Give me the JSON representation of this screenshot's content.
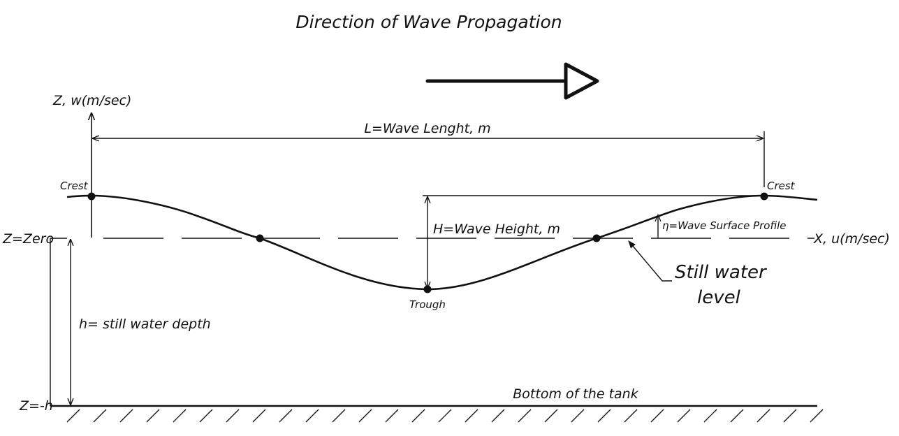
{
  "title": "Direction of Wave Propagation",
  "labels": {
    "z_axis": "Z, w(m/sec)",
    "x_axis": "X, u(m/sec)",
    "wavelength": "L=Wave Lenght, m",
    "crest_left": "Crest",
    "crest_right": "Crest",
    "trough": "Trough",
    "wave_height": "H=Wave Height, m",
    "surface_profile": "η=Wave Surface Profile",
    "still_water_line1": "Still water",
    "still_water_line2": "level",
    "z_zero": "Z=Zero",
    "z_minus_h": "Z=-h",
    "depth": "h= still water depth",
    "bottom": "Bottom of the tank"
  },
  "colors": {
    "ink": "#111111",
    "background": "#ffffff"
  }
}
